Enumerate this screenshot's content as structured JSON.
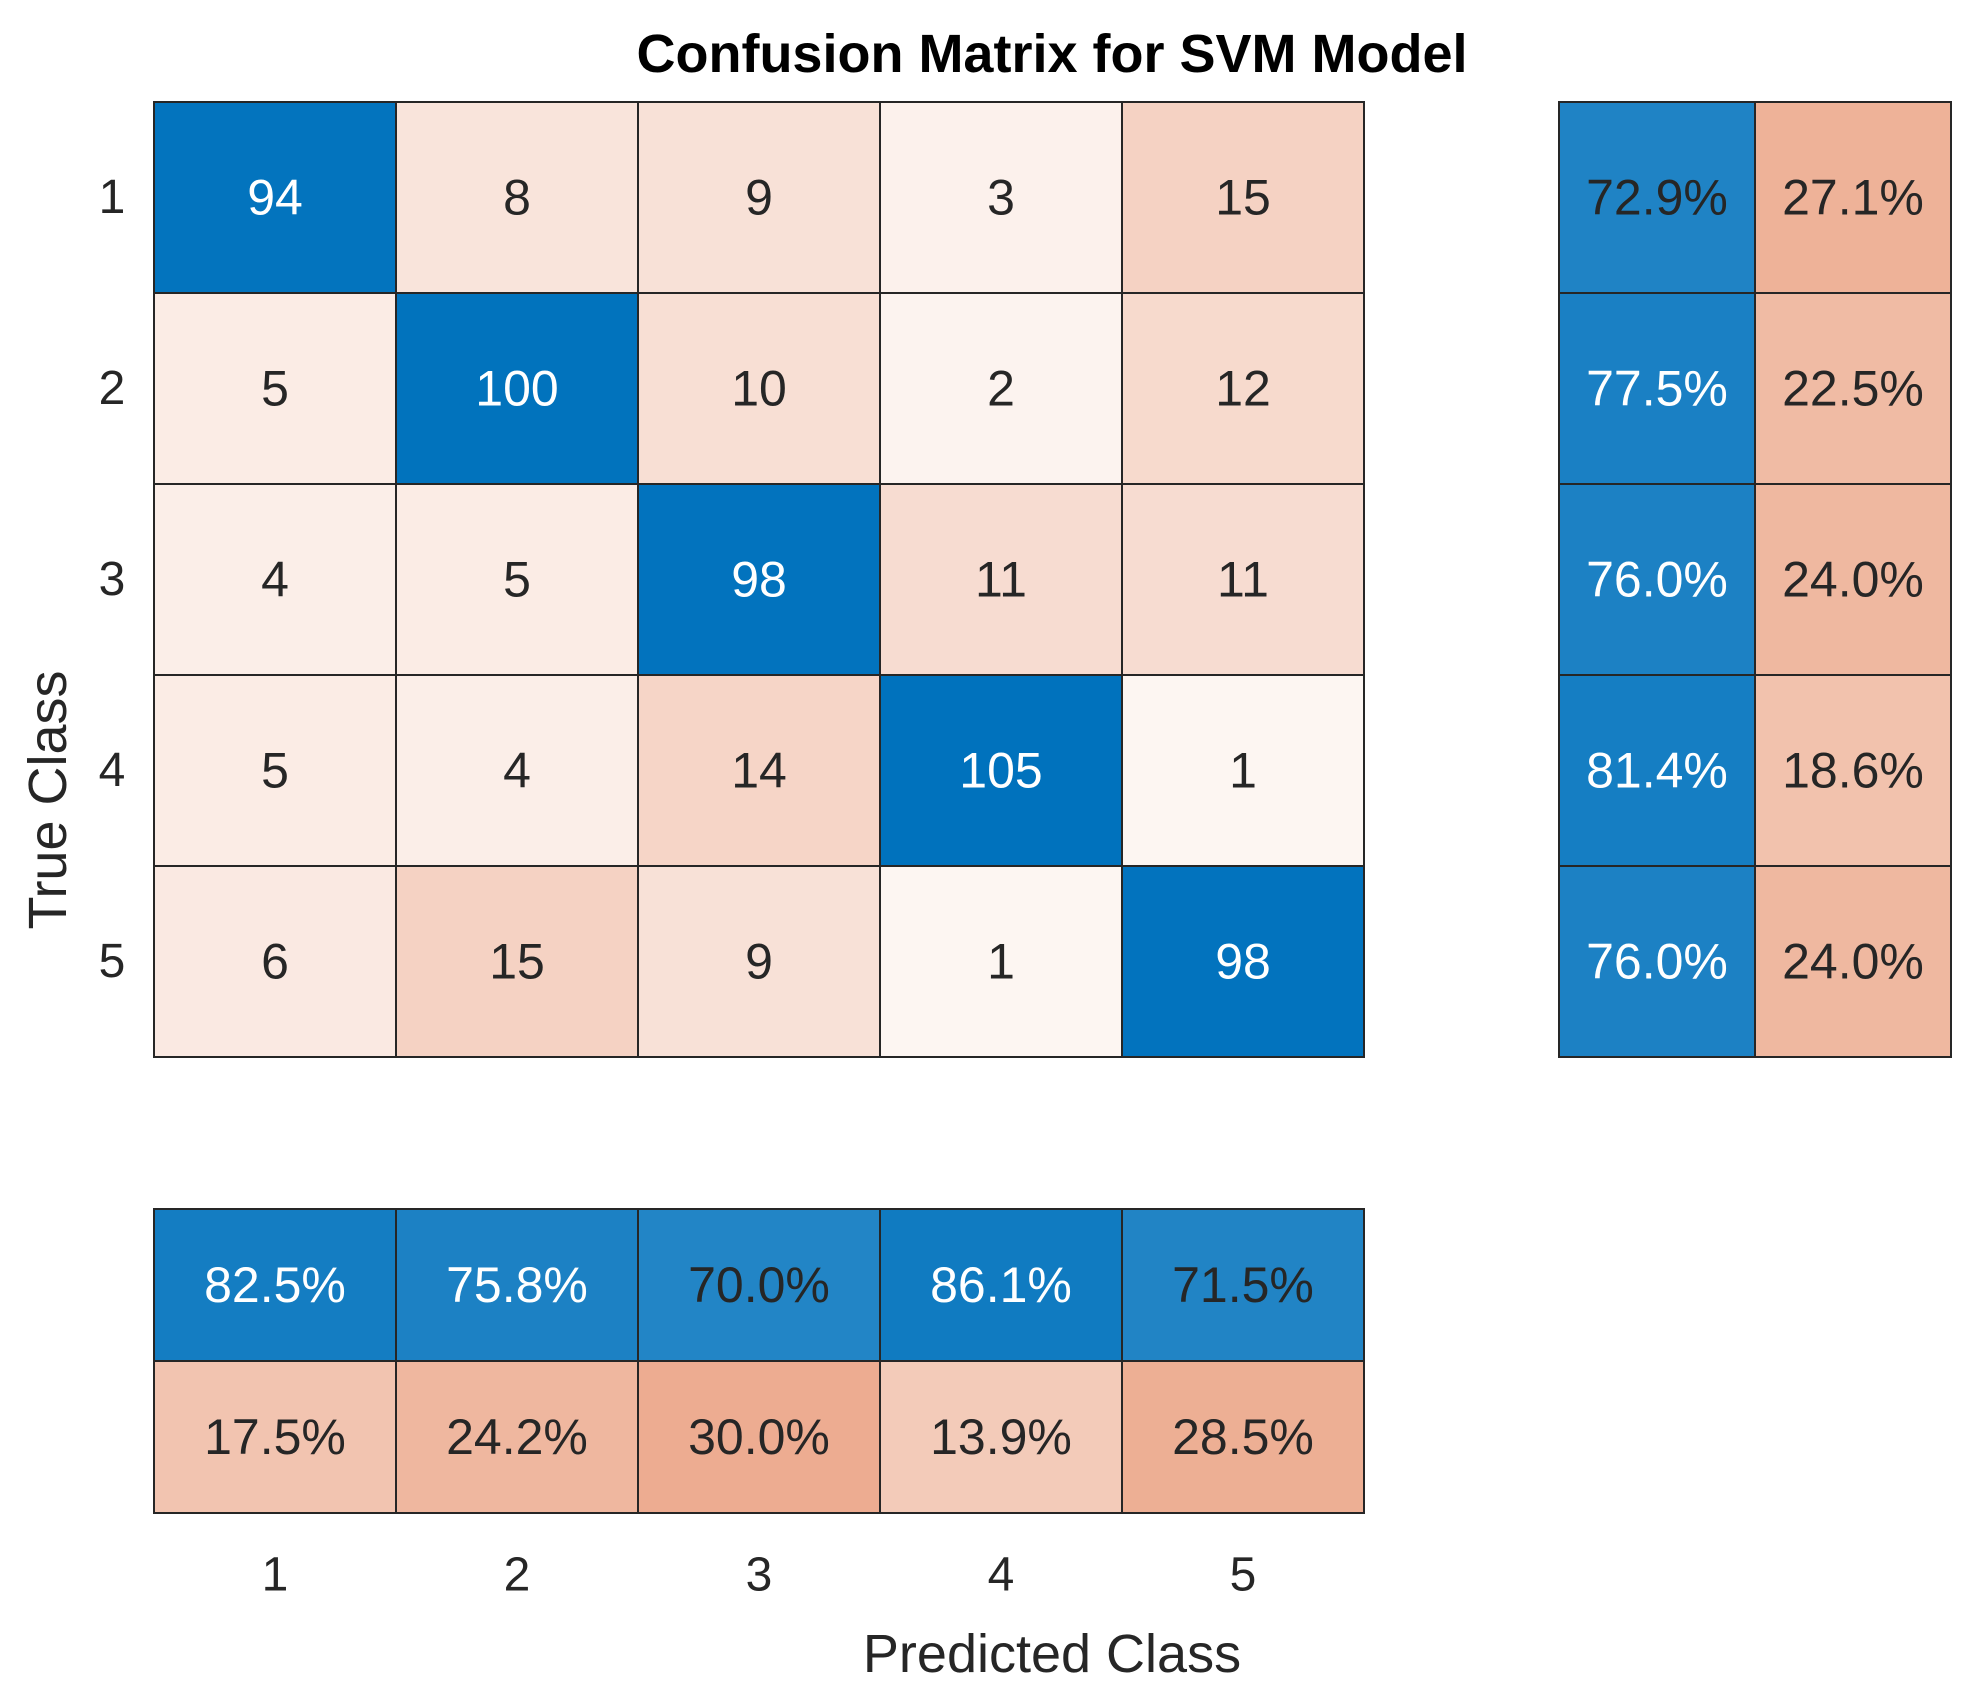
{
  "chart_data": {
    "type": "heatmap",
    "title": "Confusion Matrix for SVM Model",
    "xlabel": "Predicted Class",
    "ylabel": "True Class",
    "classes": [
      "1",
      "2",
      "3",
      "4",
      "5"
    ],
    "matrix": [
      [
        94,
        8,
        9,
        3,
        15
      ],
      [
        5,
        100,
        10,
        2,
        12
      ],
      [
        4,
        5,
        98,
        11,
        11
      ],
      [
        5,
        4,
        14,
        105,
        1
      ],
      [
        6,
        15,
        9,
        1,
        98
      ]
    ],
    "row_summary": [
      [
        "72.9%",
        "27.1%"
      ],
      [
        "77.5%",
        "22.5%"
      ],
      [
        "76.0%",
        "24.0%"
      ],
      [
        "81.4%",
        "18.6%"
      ],
      [
        "76.0%",
        "24.0%"
      ]
    ],
    "column_summary": {
      "correct": [
        "82.5%",
        "75.8%",
        "70.0%",
        "86.1%",
        "71.5%"
      ],
      "incorrect": [
        "17.5%",
        "24.2%",
        "30.0%",
        "13.9%",
        "28.5%"
      ]
    },
    "colors": {
      "correct": "#0072BD",
      "incorrect": "#D95319",
      "cell_border": "#262626",
      "light_text": "#ffffff",
      "dark_text": "#262626"
    }
  }
}
